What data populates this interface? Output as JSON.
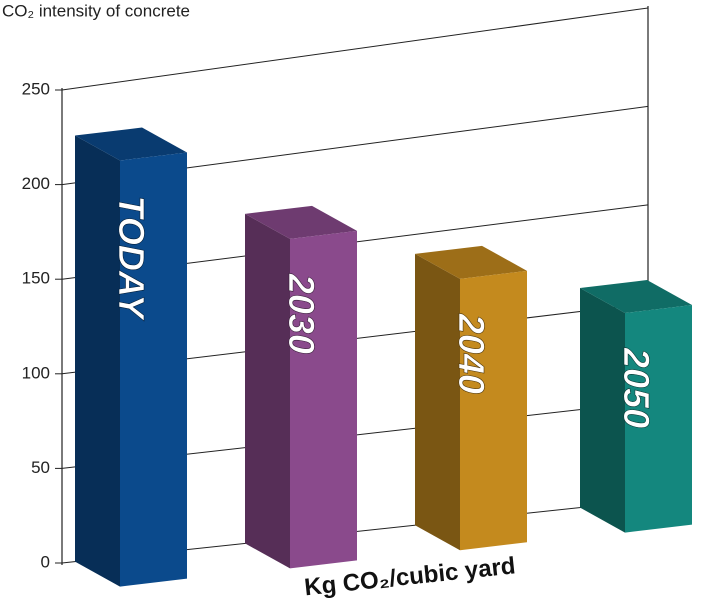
{
  "chart_data": {
    "type": "bar3d",
    "title": "CO₂ intensity of concrete",
    "xlabel": "Kg CO₂/cubic yard",
    "categories": [
      "TODAY",
      "2030",
      "2040",
      "2050"
    ],
    "values": [
      225,
      172,
      140,
      112
    ],
    "colors": [
      "#0b4a8c",
      "#8a4a8c",
      "#c48a1e",
      "#14877e"
    ],
    "ylim": [
      0,
      250
    ],
    "yticks": [
      0,
      50,
      100,
      150,
      200,
      250
    ],
    "grid": true
  }
}
